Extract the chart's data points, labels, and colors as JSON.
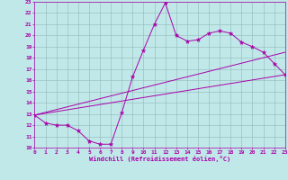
{
  "xlabel": "Windchill (Refroidissement éolien,°C)",
  "ylabel": "",
  "xlim": [
    0,
    23
  ],
  "ylim": [
    10,
    23
  ],
  "xticks": [
    0,
    1,
    2,
    3,
    4,
    5,
    6,
    7,
    8,
    9,
    10,
    11,
    12,
    13,
    14,
    15,
    16,
    17,
    18,
    19,
    20,
    21,
    22,
    23
  ],
  "yticks": [
    10,
    11,
    12,
    13,
    14,
    15,
    16,
    17,
    18,
    19,
    20,
    21,
    22,
    23
  ],
  "bg_color": "#c0e8e8",
  "grid_color": "#90b8b8",
  "line_color": "#aa00aa",
  "line1_x": [
    0,
    1,
    2,
    3,
    4,
    5,
    6,
    7,
    8,
    9,
    10,
    11,
    12,
    13,
    14,
    15,
    16,
    17,
    18,
    19,
    20,
    21,
    22,
    23
  ],
  "line1_y": [
    12.9,
    12.2,
    12.0,
    12.0,
    11.5,
    10.6,
    10.3,
    10.3,
    13.1,
    16.3,
    18.7,
    21.0,
    22.9,
    20.0,
    19.5,
    19.6,
    20.2,
    20.4,
    20.2,
    19.4,
    19.0,
    18.5,
    17.5,
    16.5
  ],
  "line2_x": [
    0,
    23
  ],
  "line2_y": [
    12.9,
    16.5
  ],
  "line3_x": [
    0,
    23
  ],
  "line3_y": [
    12.9,
    18.5
  ],
  "marker": "*",
  "markersize": 3.5,
  "linewidth": 0.7,
  "tick_fontsize": 4.5,
  "xlabel_fontsize": 5.0
}
